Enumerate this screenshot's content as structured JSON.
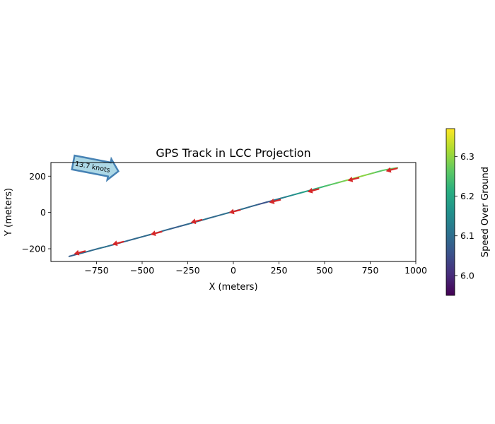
{
  "chart_data": {
    "type": "line",
    "title": "GPS Track in LCC Projection",
    "xlabel": "X (meters)",
    "ylabel": "Y (meters)",
    "xlim": [
      -1000,
      1000
    ],
    "ylim": [
      -270,
      275
    ],
    "xticks": [
      -750,
      -500,
      -250,
      0,
      250,
      500,
      750,
      1000
    ],
    "xtick_labels": [
      "−750",
      "−500",
      "−250",
      "0",
      "250",
      "500",
      "750",
      "1000"
    ],
    "yticks": [
      -200,
      0,
      200
    ],
    "ytick_labels": [
      "−200",
      "0",
      "200"
    ],
    "track": {
      "x": [
        -900,
        -860,
        -820,
        -780,
        -740,
        -700,
        -660,
        -620,
        -580,
        -540,
        -500,
        -460,
        -420,
        -380,
        -340,
        -300,
        -260,
        -220,
        -180,
        -140,
        -100,
        -60,
        -20,
        20,
        60,
        100,
        140,
        180,
        220,
        260,
        300,
        340,
        380,
        420,
        460,
        500,
        540,
        580,
        620,
        660,
        700,
        740,
        780,
        820,
        860,
        900
      ],
      "y": [
        -242,
        -231,
        -221,
        -210,
        -199,
        -189,
        -178,
        -167,
        -156,
        -145,
        -134,
        -123,
        -112,
        -100,
        -89,
        -78,
        -67,
        -56,
        -45,
        -33,
        -22,
        -11,
        0,
        11,
        22,
        34,
        45,
        56,
        67,
        78,
        89,
        100,
        111,
        122,
        133,
        144,
        155,
        166,
        177,
        188,
        199,
        210,
        221,
        232,
        240,
        246
      ],
      "speed": [
        6.07,
        6.08,
        6.1,
        6.09,
        6.1,
        6.11,
        6.1,
        6.09,
        6.08,
        6.1,
        6.09,
        6.1,
        6.11,
        6.1,
        6.08,
        6.07,
        6.09,
        6.1,
        6.12,
        6.1,
        6.09,
        6.1,
        6.11,
        6.12,
        6.1,
        6.09,
        6.08,
        6.03,
        6.1,
        6.12,
        6.14,
        6.16,
        6.18,
        6.2,
        6.22,
        6.24,
        6.26,
        6.27,
        6.29,
        6.3,
        6.3,
        6.29,
        6.27,
        6.25,
        6.28,
        6.26
      ]
    },
    "arrows": {
      "x": [
        -840,
        -630,
        -420,
        -200,
        10,
        230,
        440,
        660,
        870
      ],
      "y": [
        -220,
        -168,
        -113,
        -47,
        7,
        63,
        122,
        184,
        236
      ]
    },
    "wind_annotation": "13.7 knots",
    "colorbar": {
      "label": "Speed Over Ground",
      "range": [
        5.95,
        6.37
      ],
      "ticks": [
        6.0,
        6.1,
        6.2,
        6.3
      ],
      "tick_labels": [
        "6.0",
        "6.1",
        "6.2",
        "6.3"
      ],
      "colormap": "viridis"
    }
  },
  "colors": {
    "arrow": "#d62728",
    "annotation_fill": "#add8e6",
    "annotation_edge": "#4682b4"
  }
}
